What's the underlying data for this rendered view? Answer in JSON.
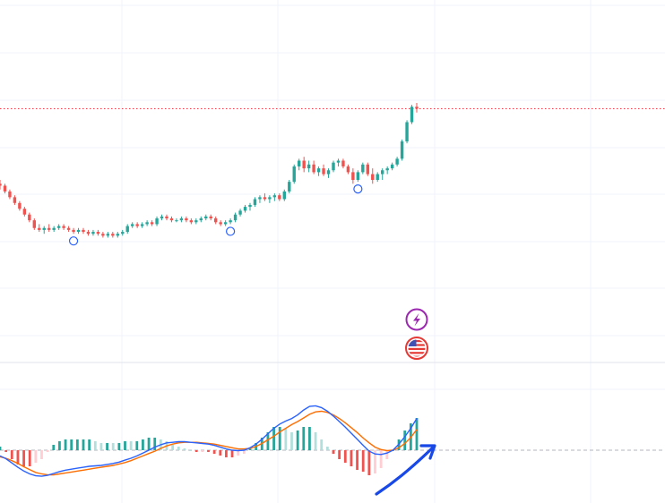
{
  "colors": {
    "up": "#26a69a",
    "down": "#ef5350",
    "up_hist": "#26a69a",
    "up_hist_fading": "#b2dfdb",
    "down_hist": "#ef5350",
    "down_hist_fading": "#ffcdd2",
    "macd_line": "#2962ff",
    "signal_line": "#ff6d00",
    "price_line": "#f23645",
    "grid": "#f0f3fa",
    "zero_line": "#b2b5be",
    "annotation_arrow": "#1848e8",
    "event_marker": "#2962ff",
    "lightning_badge": "#9c27b0",
    "flag_badge": "#e53935"
  },
  "icons": {
    "event_badge": "lightning-icon",
    "country_badge": "us-flag-icon",
    "annotation": "arrow-up-right-icon"
  },
  "chart_data": [
    {
      "type": "candlestick",
      "title": "",
      "xlabel": "",
      "ylabel": "",
      "grid": true,
      "price_line": 0.97,
      "ylim": [
        0,
        1.0
      ],
      "candles": [
        [
          0.58,
          0.6,
          0.55,
          0.57
        ],
        [
          0.57,
          0.58,
          0.53,
          0.54
        ],
        [
          0.54,
          0.55,
          0.5,
          0.51
        ],
        [
          0.51,
          0.52,
          0.47,
          0.48
        ],
        [
          0.48,
          0.49,
          0.44,
          0.45
        ],
        [
          0.45,
          0.46,
          0.41,
          0.42
        ],
        [
          0.42,
          0.43,
          0.38,
          0.39
        ],
        [
          0.39,
          0.4,
          0.34,
          0.35
        ],
        [
          0.35,
          0.37,
          0.33,
          0.34
        ],
        [
          0.34,
          0.36,
          0.32,
          0.35
        ],
        [
          0.35,
          0.37,
          0.33,
          0.34
        ],
        [
          0.34,
          0.36,
          0.33,
          0.35
        ],
        [
          0.35,
          0.37,
          0.34,
          0.36
        ],
        [
          0.36,
          0.37,
          0.34,
          0.35
        ],
        [
          0.35,
          0.36,
          0.33,
          0.34
        ],
        [
          0.34,
          0.35,
          0.32,
          0.33
        ],
        [
          0.33,
          0.35,
          0.32,
          0.34
        ],
        [
          0.34,
          0.35,
          0.32,
          0.33
        ],
        [
          0.33,
          0.34,
          0.31,
          0.32
        ],
        [
          0.32,
          0.34,
          0.31,
          0.33
        ],
        [
          0.33,
          0.34,
          0.31,
          0.32
        ],
        [
          0.32,
          0.33,
          0.3,
          0.31
        ],
        [
          0.31,
          0.33,
          0.3,
          0.32
        ],
        [
          0.32,
          0.33,
          0.3,
          0.31
        ],
        [
          0.31,
          0.33,
          0.3,
          0.32
        ],
        [
          0.32,
          0.34,
          0.31,
          0.33
        ],
        [
          0.33,
          0.37,
          0.32,
          0.36
        ],
        [
          0.36,
          0.38,
          0.35,
          0.37
        ],
        [
          0.37,
          0.38,
          0.35,
          0.36
        ],
        [
          0.36,
          0.38,
          0.35,
          0.37
        ],
        [
          0.37,
          0.39,
          0.36,
          0.38
        ],
        [
          0.38,
          0.39,
          0.36,
          0.37
        ],
        [
          0.37,
          0.41,
          0.36,
          0.4
        ],
        [
          0.4,
          0.42,
          0.39,
          0.41
        ],
        [
          0.41,
          0.42,
          0.39,
          0.4
        ],
        [
          0.4,
          0.41,
          0.38,
          0.39
        ],
        [
          0.39,
          0.4,
          0.38,
          0.39
        ],
        [
          0.39,
          0.41,
          0.38,
          0.4
        ],
        [
          0.4,
          0.41,
          0.38,
          0.39
        ],
        [
          0.39,
          0.4,
          0.37,
          0.38
        ],
        [
          0.38,
          0.4,
          0.37,
          0.39
        ],
        [
          0.39,
          0.41,
          0.38,
          0.4
        ],
        [
          0.4,
          0.42,
          0.39,
          0.41
        ],
        [
          0.41,
          0.42,
          0.39,
          0.4
        ],
        [
          0.4,
          0.41,
          0.37,
          0.38
        ],
        [
          0.38,
          0.39,
          0.36,
          0.37
        ],
        [
          0.37,
          0.39,
          0.36,
          0.38
        ],
        [
          0.38,
          0.4,
          0.37,
          0.39
        ],
        [
          0.39,
          0.43,
          0.38,
          0.42
        ],
        [
          0.42,
          0.45,
          0.41,
          0.44
        ],
        [
          0.44,
          0.47,
          0.43,
          0.46
        ],
        [
          0.46,
          0.48,
          0.44,
          0.47
        ],
        [
          0.47,
          0.51,
          0.46,
          0.5
        ],
        [
          0.5,
          0.52,
          0.48,
          0.51
        ],
        [
          0.51,
          0.53,
          0.49,
          0.5
        ],
        [
          0.5,
          0.52,
          0.48,
          0.51
        ],
        [
          0.51,
          0.53,
          0.49,
          0.52
        ],
        [
          0.52,
          0.53,
          0.49,
          0.5
        ],
        [
          0.5,
          0.55,
          0.49,
          0.54
        ],
        [
          0.54,
          0.6,
          0.53,
          0.59
        ],
        [
          0.59,
          0.68,
          0.58,
          0.67
        ],
        [
          0.67,
          0.71,
          0.65,
          0.7
        ],
        [
          0.7,
          0.72,
          0.64,
          0.66
        ],
        [
          0.66,
          0.7,
          0.64,
          0.68
        ],
        [
          0.68,
          0.7,
          0.63,
          0.64
        ],
        [
          0.64,
          0.67,
          0.62,
          0.66
        ],
        [
          0.66,
          0.68,
          0.62,
          0.63
        ],
        [
          0.63,
          0.66,
          0.61,
          0.65
        ],
        [
          0.65,
          0.7,
          0.64,
          0.69
        ],
        [
          0.69,
          0.71,
          0.67,
          0.7
        ],
        [
          0.7,
          0.71,
          0.66,
          0.67
        ],
        [
          0.67,
          0.68,
          0.63,
          0.64
        ],
        [
          0.64,
          0.66,
          0.58,
          0.6
        ],
        [
          0.6,
          0.65,
          0.59,
          0.64
        ],
        [
          0.64,
          0.69,
          0.63,
          0.68
        ],
        [
          0.68,
          0.69,
          0.62,
          0.63
        ],
        [
          0.63,
          0.66,
          0.58,
          0.6
        ],
        [
          0.6,
          0.64,
          0.59,
          0.63
        ],
        [
          0.63,
          0.66,
          0.6,
          0.65
        ],
        [
          0.65,
          0.67,
          0.63,
          0.66
        ],
        [
          0.66,
          0.69,
          0.65,
          0.68
        ],
        [
          0.68,
          0.72,
          0.67,
          0.71
        ],
        [
          0.71,
          0.81,
          0.7,
          0.8
        ],
        [
          0.8,
          0.91,
          0.79,
          0.9
        ],
        [
          0.9,
          0.99,
          0.89,
          0.98
        ],
        [
          0.98,
          1.0,
          0.95,
          0.97
        ]
      ],
      "event_markers_at_candle": [
        15,
        47,
        73
      ]
    },
    {
      "type": "macd",
      "title": "",
      "xlabel": "",
      "ylabel": "",
      "ylim": [
        -1,
        1
      ],
      "macd": [
        -0.12,
        -0.18,
        -0.27,
        -0.36,
        -0.44,
        -0.5,
        -0.54,
        -0.55,
        -0.53,
        -0.49,
        -0.45,
        -0.42,
        -0.4,
        -0.38,
        -0.36,
        -0.34,
        -0.33,
        -0.32,
        -0.3,
        -0.28,
        -0.25,
        -0.21,
        -0.17,
        -0.12,
        -0.06,
        0.0,
        0.05,
        0.09,
        0.12,
        0.13,
        0.14,
        0.14,
        0.13,
        0.12,
        0.11,
        0.1,
        0.08,
        0.05,
        0.02,
        0.0,
        -0.01,
        0.0,
        0.04,
        0.1,
        0.18,
        0.27,
        0.36,
        0.43,
        0.48,
        0.52,
        0.58,
        0.66,
        0.72,
        0.73,
        0.7,
        0.64,
        0.56,
        0.47,
        0.38,
        0.28,
        0.18,
        0.08,
        -0.02,
        -0.08,
        -0.09,
        -0.06,
        0.0,
        0.1,
        0.22,
        0.36,
        0.52
      ],
      "signal": [
        -0.14,
        -0.17,
        -0.22,
        -0.28,
        -0.35,
        -0.41,
        -0.47,
        -0.5,
        -0.52,
        -0.52,
        -0.5,
        -0.48,
        -0.46,
        -0.44,
        -0.42,
        -0.4,
        -0.38,
        -0.36,
        -0.34,
        -0.32,
        -0.29,
        -0.26,
        -0.22,
        -0.17,
        -0.12,
        -0.07,
        -0.02,
        0.03,
        0.07,
        0.1,
        0.12,
        0.13,
        0.13,
        0.13,
        0.12,
        0.11,
        0.1,
        0.08,
        0.06,
        0.04,
        0.02,
        0.02,
        0.03,
        0.06,
        0.11,
        0.17,
        0.23,
        0.3,
        0.36,
        0.42,
        0.47,
        0.53,
        0.59,
        0.63,
        0.64,
        0.62,
        0.58,
        0.52,
        0.45,
        0.37,
        0.29,
        0.2,
        0.12,
        0.05,
        0.01,
        -0.01,
        0.0,
        0.04,
        0.11,
        0.21,
        0.34
      ],
      "zero": 0
    }
  ],
  "annotation": {
    "kind": "hand-drawn arrow pointing up-right"
  }
}
